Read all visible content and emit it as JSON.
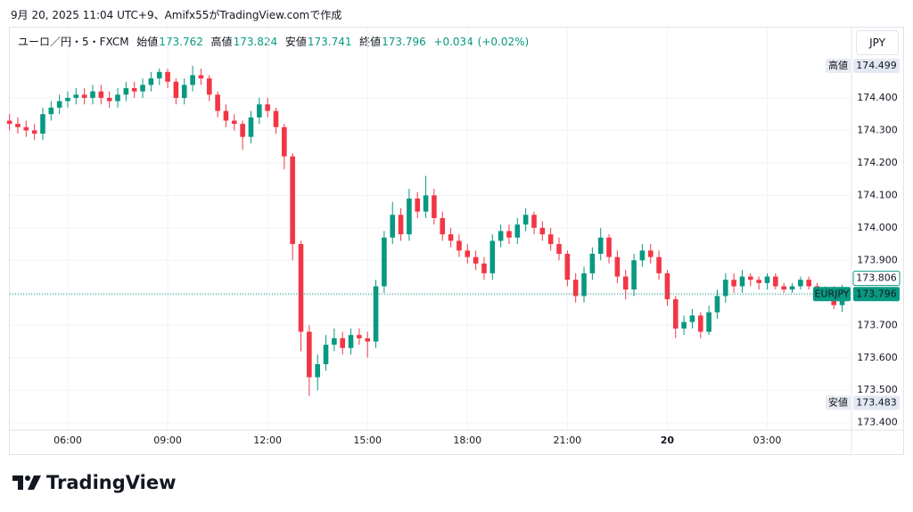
{
  "header": {
    "caption": "9月 20, 2025 11:04 UTC+9、Amifx55がTradingView.comで作成",
    "symbol": "ユーロ／円・5・FXCM",
    "open_label": "始値",
    "open": 173.762,
    "high_label": "高値",
    "high": 173.824,
    "low_label": "安値",
    "low": 173.741,
    "close_label": "終値",
    "close": 173.796,
    "change": {
      "value": 0.034,
      "label": "+0.034"
    },
    "change_pct": {
      "value": 0.02,
      "label": "(+0.02%)"
    },
    "currency": "JPY"
  },
  "chart_data": {
    "type": "candlestick",
    "up_color": "#089981",
    "down_color": "#f23645",
    "grid": true,
    "xlim": [
      4.26,
      29.53
    ],
    "ylim": [
      173.38,
      174.6
    ],
    "xticks": [
      {
        "value": 6,
        "label": "06:00"
      },
      {
        "value": 9,
        "label": "09:00"
      },
      {
        "value": 12,
        "label": "12:00"
      },
      {
        "value": 15,
        "label": "15:00"
      },
      {
        "value": 18,
        "label": "18:00"
      },
      {
        "value": 21,
        "label": "21:00"
      },
      {
        "value": 24,
        "label": "20"
      },
      {
        "value": 27,
        "label": "03:00"
      }
    ],
    "yticks": [
      {
        "value": 173.4,
        "label": "173.400"
      },
      {
        "value": 173.5,
        "label": "173.500"
      },
      {
        "value": 173.6,
        "label": "173.600"
      },
      {
        "value": 173.7,
        "label": "173.700"
      },
      {
        "value": 173.8,
        "label": "173.800"
      },
      {
        "value": 173.9,
        "label": "173.900"
      },
      {
        "value": 174,
        "label": "174.000"
      },
      {
        "value": 174.1,
        "label": "174.100"
      },
      {
        "value": 174.2,
        "label": "174.200"
      },
      {
        "value": 174.3,
        "label": "174.300"
      },
      {
        "value": 174.4,
        "label": "174.400"
      }
    ],
    "x": [
      4.25,
      4.5,
      4.75,
      5,
      5.25,
      5.5,
      5.75,
      6,
      6.25,
      6.5,
      6.75,
      7,
      7.25,
      7.5,
      7.75,
      8,
      8.25,
      8.5,
      8.75,
      9,
      9.25,
      9.5,
      9.75,
      10,
      10.25,
      10.5,
      10.75,
      11,
      11.25,
      11.5,
      11.75,
      12,
      12.25,
      12.5,
      12.75,
      13,
      13.25,
      13.5,
      13.75,
      14,
      14.25,
      14.5,
      14.75,
      15,
      15.25,
      15.5,
      15.75,
      16,
      16.25,
      16.5,
      16.75,
      17,
      17.25,
      17.5,
      17.75,
      18,
      18.25,
      18.5,
      18.75,
      19,
      19.25,
      19.5,
      19.75,
      20,
      20.25,
      20.5,
      20.75,
      21,
      21.25,
      21.5,
      21.75,
      22,
      22.25,
      22.5,
      22.75,
      23,
      23.25,
      23.5,
      23.75,
      24,
      24.25,
      24.5,
      24.75,
      25,
      25.25,
      25.5,
      25.75,
      26,
      26.25,
      26.5,
      26.75,
      27,
      27.25,
      27.5,
      27.75,
      28,
      28.25,
      28.5,
      28.75,
      29,
      29.25
    ],
    "open": [
      174.33,
      174.32,
      174.31,
      174.3,
      174.29,
      174.35,
      174.37,
      174.39,
      174.4,
      174.41,
      174.4,
      174.42,
      174.4,
      174.39,
      174.41,
      174.43,
      174.42,
      174.44,
      174.46,
      174.48,
      174.45,
      174.4,
      174.44,
      174.47,
      174.46,
      174.41,
      174.36,
      174.33,
      174.32,
      174.28,
      174.34,
      174.38,
      174.36,
      174.31,
      174.22,
      173.95,
      173.68,
      173.54,
      173.58,
      173.64,
      173.66,
      173.63,
      173.67,
      173.66,
      173.65,
      173.82,
      173.97,
      174.04,
      173.98,
      174.09,
      174.05,
      174.1,
      174.03,
      173.98,
      173.96,
      173.93,
      173.91,
      173.89,
      173.86,
      173.96,
      173.99,
      173.97,
      174.01,
      174.04,
      174.0,
      173.98,
      173.95,
      173.92,
      173.84,
      173.79,
      173.86,
      173.92,
      173.97,
      173.91,
      173.85,
      173.81,
      173.9,
      173.93,
      173.91,
      173.86,
      173.78,
      173.69,
      173.71,
      173.73,
      173.68,
      173.74,
      173.79,
      173.84,
      173.82,
      173.85,
      173.84,
      173.83,
      173.85,
      173.82,
      173.81,
      173.82,
      173.84,
      173.82,
      173.81,
      173.81,
      173.762
    ],
    "high": [
      174.35,
      174.34,
      174.33,
      174.32,
      174.37,
      174.39,
      174.41,
      174.42,
      174.43,
      174.43,
      174.44,
      174.44,
      174.42,
      174.43,
      174.45,
      174.45,
      174.46,
      174.48,
      174.49,
      174.49,
      174.46,
      174.46,
      174.499,
      174.49,
      174.47,
      174.42,
      174.38,
      174.35,
      174.33,
      174.36,
      174.4,
      174.4,
      174.37,
      174.32,
      174.23,
      173.96,
      173.7,
      173.61,
      173.67,
      173.69,
      173.68,
      173.69,
      173.69,
      173.68,
      173.84,
      173.99,
      174.08,
      174.06,
      174.12,
      174.11,
      174.16,
      174.12,
      174.05,
      174.0,
      173.98,
      173.95,
      173.93,
      173.91,
      173.98,
      174.01,
      174.01,
      174.03,
      174.06,
      174.05,
      174.02,
      174.0,
      173.97,
      173.93,
      173.86,
      173.88,
      173.94,
      174.0,
      173.98,
      173.93,
      173.87,
      173.92,
      173.95,
      173.95,
      173.93,
      173.87,
      173.79,
      173.73,
      173.75,
      173.74,
      173.76,
      173.81,
      173.86,
      173.86,
      173.87,
      173.86,
      173.85,
      173.86,
      173.86,
      173.83,
      173.83,
      173.85,
      173.85,
      173.83,
      173.82,
      173.82,
      173.824
    ],
    "low": [
      174.3,
      174.29,
      174.28,
      174.27,
      174.27,
      174.33,
      174.35,
      174.37,
      174.38,
      174.38,
      174.38,
      174.38,
      174.37,
      174.37,
      174.39,
      174.4,
      174.4,
      174.42,
      174.44,
      174.43,
      174.38,
      174.38,
      174.42,
      174.44,
      174.39,
      174.34,
      174.31,
      174.3,
      174.24,
      174.26,
      174.32,
      174.34,
      174.29,
      174.18,
      173.9,
      173.62,
      173.483,
      173.5,
      173.56,
      173.62,
      173.61,
      173.61,
      173.64,
      173.6,
      173.63,
      173.8,
      173.95,
      173.96,
      173.96,
      174.03,
      174.03,
      174.01,
      173.96,
      173.94,
      173.91,
      173.89,
      173.87,
      173.84,
      173.84,
      173.94,
      173.95,
      173.95,
      173.99,
      173.98,
      173.96,
      173.93,
      173.9,
      173.82,
      173.77,
      173.77,
      173.84,
      173.9,
      173.89,
      173.83,
      173.78,
      173.79,
      173.88,
      173.89,
      173.84,
      173.76,
      173.66,
      173.67,
      173.69,
      173.66,
      173.67,
      173.72,
      173.77,
      173.8,
      173.8,
      173.82,
      173.81,
      173.81,
      173.81,
      173.8,
      173.8,
      173.81,
      173.81,
      173.8,
      173.8,
      173.75,
      173.741
    ],
    "close": [
      174.32,
      174.31,
      174.3,
      174.29,
      174.35,
      174.37,
      174.39,
      174.4,
      174.41,
      174.4,
      174.42,
      174.4,
      174.39,
      174.41,
      174.43,
      174.42,
      174.44,
      174.46,
      174.48,
      174.45,
      174.4,
      174.44,
      174.47,
      174.46,
      174.41,
      174.36,
      174.33,
      174.32,
      174.28,
      174.34,
      174.38,
      174.36,
      174.31,
      174.22,
      173.95,
      173.68,
      173.54,
      173.58,
      173.64,
      173.66,
      173.63,
      173.67,
      173.66,
      173.65,
      173.82,
      173.97,
      174.04,
      173.98,
      174.09,
      174.05,
      174.1,
      174.03,
      173.98,
      173.96,
      173.93,
      173.91,
      173.89,
      173.86,
      173.96,
      173.99,
      173.97,
      174.01,
      174.04,
      174.0,
      173.98,
      173.95,
      173.92,
      173.84,
      173.79,
      173.86,
      173.92,
      173.97,
      173.91,
      173.85,
      173.81,
      173.9,
      173.93,
      173.91,
      173.86,
      173.78,
      173.69,
      173.71,
      173.73,
      173.68,
      173.74,
      173.79,
      173.84,
      173.82,
      173.85,
      173.84,
      173.83,
      173.85,
      173.82,
      173.81,
      173.82,
      173.84,
      173.82,
      173.81,
      173.81,
      173.762,
      173.796
    ],
    "high_marker": {
      "label": "高値",
      "value": 174.499
    },
    "low_marker": {
      "label": "安値",
      "value": 173.483
    },
    "price_line": {
      "label": "EURJPY",
      "value": 173.796
    },
    "bid_price": 173.806
  },
  "footer": {
    "logo": "TradingView"
  }
}
